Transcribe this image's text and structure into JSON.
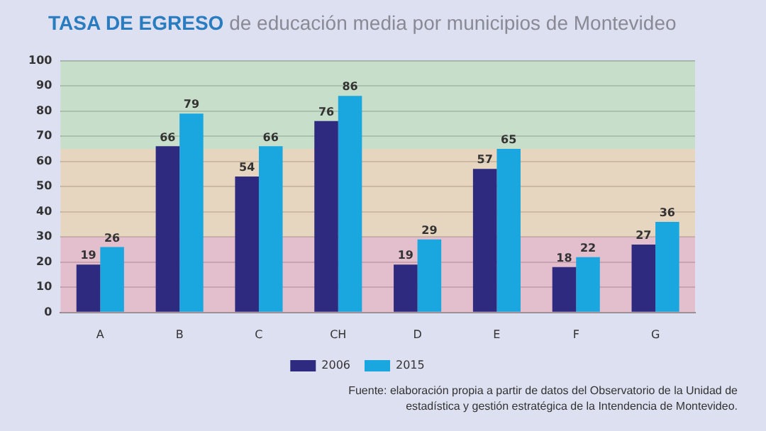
{
  "chart_data": {
    "type": "bar",
    "title": "TASA DE EGRESO",
    "subtitle": "de educación media por municipios de Montevideo",
    "categories": [
      "A",
      "B",
      "C",
      "CH",
      "D",
      "E",
      "F",
      "G"
    ],
    "series": [
      {
        "name": "2006",
        "color": "#2e2a7f",
        "values": [
          19,
          66,
          54,
          76,
          19,
          57,
          18,
          27
        ]
      },
      {
        "name": "2015",
        "color": "#1aa7e0",
        "values": [
          26,
          79,
          66,
          86,
          29,
          65,
          22,
          36
        ]
      }
    ],
    "ylim": [
      0,
      100
    ],
    "yticks": [
      0,
      10,
      20,
      30,
      40,
      50,
      60,
      70,
      80,
      90,
      100
    ],
    "grid": "y",
    "data_labels": true,
    "legend": "bottom",
    "bands": [
      {
        "axis": "y",
        "from": 0,
        "to": 30,
        "color": "#e8a9b8"
      },
      {
        "axis": "y",
        "from": 30,
        "to": 65,
        "color": "#efcf9f"
      },
      {
        "axis": "y",
        "from": 65,
        "to": 100,
        "color": "#b9dcb0"
      }
    ],
    "annotations": [
      "Fuente: elaboración propia a partir de datos del Observatorio de la Unidad de estadística y gestión estratégica de la Intendencia de Montevideo."
    ]
  }
}
